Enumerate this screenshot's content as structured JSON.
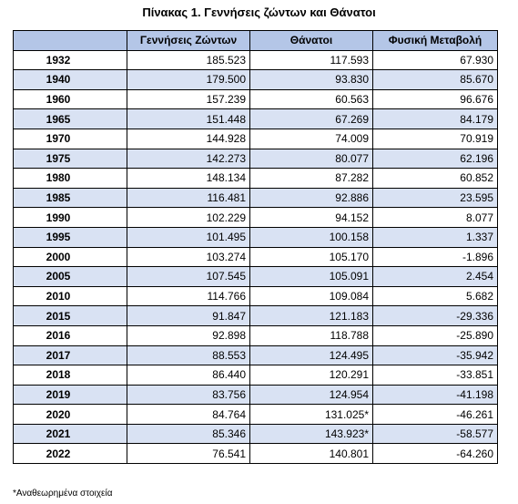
{
  "title": "Πίνακας 1. Γεννήσεις ζώντων και Θάνατοι",
  "table": {
    "header": [
      "",
      "Γεννήσεις Ζώντων",
      "Θάνατοι",
      "Φυσική Μεταβολή"
    ],
    "rows": [
      [
        "1932",
        "185.523",
        "117.593",
        "67.930"
      ],
      [
        "1940",
        "179.500",
        "93.830",
        "85.670"
      ],
      [
        "1960",
        "157.239",
        "60.563",
        "96.676"
      ],
      [
        "1965",
        "151.448",
        "67.269",
        "84.179"
      ],
      [
        "1970",
        "144.928",
        "74.009",
        "70.919"
      ],
      [
        "1975",
        "142.273",
        "80.077",
        "62.196"
      ],
      [
        "1980",
        "148.134",
        "87.282",
        "60.852"
      ],
      [
        "1985",
        "116.481",
        "92.886",
        "23.595"
      ],
      [
        "1990",
        "102.229",
        "94.152",
        "8.077"
      ],
      [
        "1995",
        "101.495",
        "100.158",
        "1.337"
      ],
      [
        "2000",
        "103.274",
        "105.170",
        "-1.896"
      ],
      [
        "2005",
        "107.545",
        "105.091",
        "2.454"
      ],
      [
        "2010",
        "114.766",
        "109.084",
        "5.682"
      ],
      [
        "2015",
        "91.847",
        "121.183",
        "-29.336"
      ],
      [
        "2016",
        "92.898",
        "118.788",
        "-25.890"
      ],
      [
        "2017",
        "88.553",
        "124.495",
        "-35.942"
      ],
      [
        "2018",
        "86.440",
        "120.291",
        "-33.851"
      ],
      [
        "2019",
        "83.756",
        "124.954",
        "-41.198"
      ],
      [
        "2020",
        "84.764",
        "131.025*",
        "-46.261"
      ],
      [
        "2021",
        "85.346",
        "143.923*",
        "-58.577"
      ],
      [
        "2022",
        "76.541",
        "140.801",
        "-64.260"
      ]
    ]
  },
  "note": "*Αναθεωρημένα στοιχεία"
}
